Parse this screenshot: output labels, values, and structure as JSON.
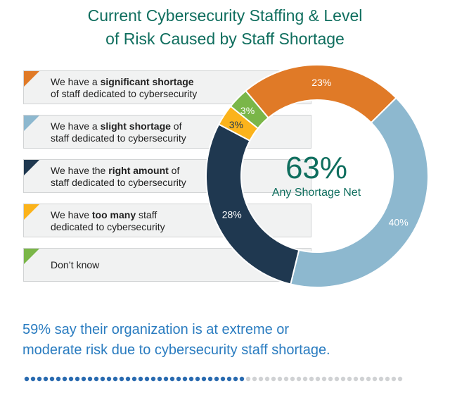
{
  "title": {
    "line1": "Current Cybersecurity Staffing & Level",
    "line2": "of Risk Caused by Staff Shortage"
  },
  "legend": [
    {
      "pre": "We have a ",
      "bold": "significant shortage",
      "post": "",
      "line2": "of staff dedicated to cybersecurity",
      "color": "#e07a27"
    },
    {
      "pre": "We have a ",
      "bold": "slight shortage",
      "post": " of",
      "line2": "staff dedicated to cybersecurity",
      "color": "#8db8cf"
    },
    {
      "pre": "We have the ",
      "bold": "right amount",
      "post": " of",
      "line2": "staff dedicated to cybersecurity",
      "color": "#1f3850"
    },
    {
      "pre": "We have ",
      "bold": "too many",
      "post": " staff",
      "line2": "dedicated to cybersecurity",
      "color": "#fbb31b"
    },
    {
      "pre": "Don’t know",
      "bold": "",
      "post": "",
      "line2": "",
      "color": "#7ab648"
    }
  ],
  "center": {
    "value": "63%",
    "label": "Any Shortage Net"
  },
  "footer": {
    "line1": "59% say their organization is at extreme or",
    "line2": "moderate risk due to cybersecurity staff shortage."
  },
  "chart_data": {
    "type": "pie",
    "donut": true,
    "categories": [
      "significant shortage",
      "slight shortage",
      "right amount",
      "too many",
      "Don’t know"
    ],
    "values": [
      23,
      40,
      28,
      3,
      3
    ],
    "value_labels": [
      "23%",
      "40%",
      "28%",
      "3%",
      "3%"
    ],
    "colors": [
      "#e07a27",
      "#8db8cf",
      "#1f3850",
      "#fbb31b",
      "#7ab648"
    ]
  }
}
